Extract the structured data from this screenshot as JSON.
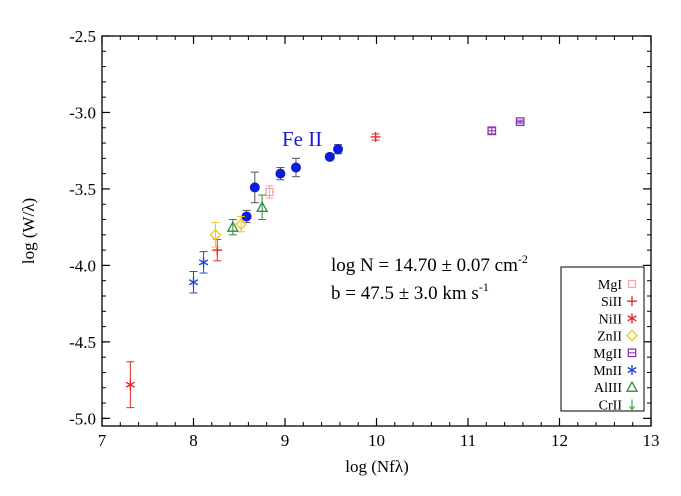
{
  "chart_data": {
    "type": "scatter",
    "title": "",
    "xlabel": "log (Nfλ)",
    "ylabel": "log (W/λ)",
    "xlim": [
      7,
      13
    ],
    "ylim": [
      -5.05,
      -2.5
    ],
    "x_ticks": [
      7,
      8,
      9,
      10,
      11,
      12,
      13
    ],
    "y_ticks": [
      -2.5,
      -3.0,
      -3.5,
      -4.0,
      -4.5,
      -5.0
    ],
    "x_tick_labels": [
      "7",
      "8",
      "9",
      "10",
      "11",
      "12",
      "13"
    ],
    "y_tick_labels": [
      "-2.5",
      "-3.0",
      "-3.5",
      "-4.0",
      "-4.5",
      "-5.0"
    ],
    "grid": false,
    "legend_placement": "bottom-right",
    "annotations": {
      "fe_label": "Fe II",
      "fe_color": "#1a1adb",
      "log_n_prefix": "log N = 14.70 ± 0.07 cm",
      "log_n_exp": "-2",
      "b_prefix": "b = 47.5 ± 3.0 km s",
      "b_exp": "-1"
    },
    "curve_of_growth": {
      "description_free": true,
      "b_kms": 47.5,
      "b_err": 3.0
    },
    "series": [
      {
        "name": "Fe II",
        "marker": "filled-circle",
        "color": "#0b1fd9",
        "points": [
          {
            "x": 8.58,
            "y": -3.68,
            "err": 0.04
          },
          {
            "x": 8.67,
            "y": -3.49,
            "err": 0.1
          },
          {
            "x": 8.95,
            "y": -3.4,
            "err": 0.04
          },
          {
            "x": 9.12,
            "y": -3.36,
            "err": 0.06
          },
          {
            "x": 9.49,
            "y": -3.29,
            "err": 0.02
          },
          {
            "x": 9.58,
            "y": -3.24,
            "err": 0.03
          }
        ]
      },
      {
        "name": "MgI",
        "marker": "square",
        "color": "#f5a3a8",
        "points": [
          {
            "x": 8.83,
            "y": -3.52,
            "err": 0.04
          }
        ]
      },
      {
        "name": "SiII",
        "marker": "plus",
        "color": "#e8282a",
        "points": [
          {
            "x": 8.26,
            "y": -3.9,
            "err": 0.07
          },
          {
            "x": 9.99,
            "y": -3.16,
            "err": 0.02
          }
        ]
      },
      {
        "name": "NiII",
        "marker": "asterisk",
        "color": "#e8282a",
        "points": [
          {
            "x": 7.31,
            "y": -4.78,
            "err": 0.15
          }
        ]
      },
      {
        "name": "ZnII",
        "marker": "diamond",
        "color": "#f2c31a",
        "points": [
          {
            "x": 8.24,
            "y": -3.8,
            "err": 0.08
          },
          {
            "x": 8.52,
            "y": -3.73,
            "err": 0.05
          }
        ]
      },
      {
        "name": "MgII",
        "marker": "boxed-plus",
        "color": "#9433b5",
        "points": [
          {
            "x": 11.26,
            "y": -3.12,
            "err": 0.02
          },
          {
            "x": 11.57,
            "y": -3.06,
            "err": 0.01
          }
        ]
      },
      {
        "name": "MnII",
        "marker": "asterisk",
        "color": "#2348d9",
        "points": [
          {
            "x": 8.0,
            "y": -4.11,
            "err": 0.07
          },
          {
            "x": 8.11,
            "y": -3.98,
            "err": 0.07
          }
        ]
      },
      {
        "name": "AlIII",
        "marker": "triangle",
        "color": "#2f8a3b",
        "points": [
          {
            "x": 8.43,
            "y": -3.75,
            "err": 0.05
          },
          {
            "x": 8.75,
            "y": -3.62,
            "err": 0.08
          }
        ]
      },
      {
        "name": "CrII",
        "marker": "down-arrow",
        "color": "#36b040",
        "points": []
      }
    ]
  }
}
